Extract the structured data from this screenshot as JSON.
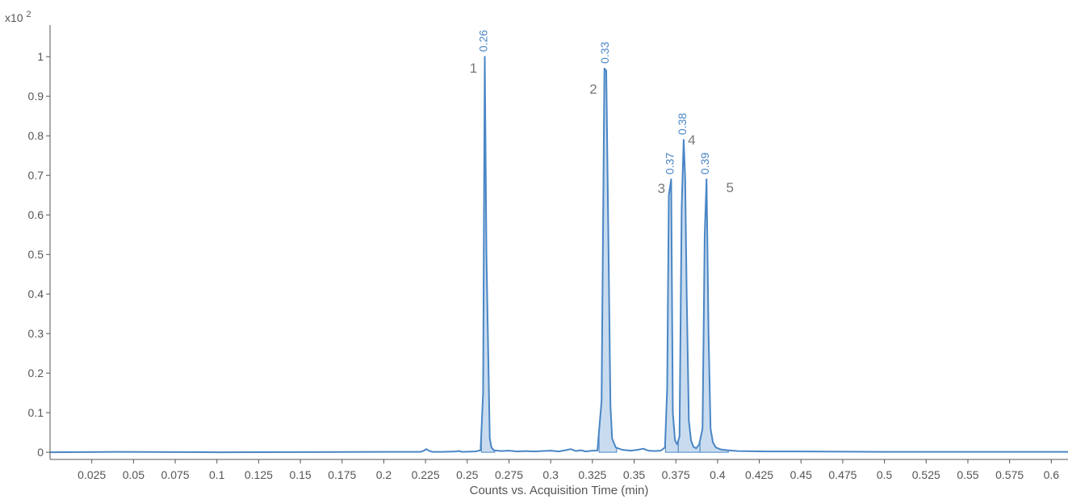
{
  "chart_data": {
    "type": "line",
    "title": "",
    "xlabel": "Counts vs. Acquisition Time (min)",
    "ylabel": "",
    "y_scale_label": "x10",
    "y_scale_exponent": "2",
    "xlim": [
      0,
      0.61
    ],
    "ylim": [
      -0.01,
      1.08
    ],
    "x_ticks": [
      "0.025",
      "0.05",
      "0.075",
      "0.1",
      "0.125",
      "0.15",
      "0.175",
      "0.2",
      "0.225",
      "0.25",
      "0.275",
      "0.3",
      "0.325",
      "0.35",
      "0.375",
      "0.4",
      "0.425",
      "0.45",
      "0.475",
      "0.5",
      "0.525",
      "0.55",
      "0.575",
      "0.6"
    ],
    "y_ticks": [
      "0",
      "0.1",
      "0.2",
      "0.3",
      "0.4",
      "0.5",
      "0.6",
      "0.7",
      "0.8",
      "0.9",
      "1"
    ],
    "grid": false,
    "legend": "none",
    "colors": {
      "line": "#4a86c5",
      "fill": "#c9dcef",
      "axis": "#555555",
      "peak_id": "#777777"
    },
    "series": [
      {
        "x": [
          0.0,
          0.04,
          0.1,
          0.2,
          0.222,
          0.224,
          0.2255,
          0.227,
          0.229,
          0.235,
          0.243,
          0.245,
          0.247,
          0.255,
          0.258,
          0.2595,
          0.2605,
          0.2615,
          0.2635,
          0.2645,
          0.266,
          0.27,
          0.275,
          0.28,
          0.285,
          0.29,
          0.295,
          0.3,
          0.305,
          0.31,
          0.312,
          0.315,
          0.318,
          0.321,
          0.325,
          0.328,
          0.3305,
          0.3322,
          0.3333,
          0.3347,
          0.3358,
          0.3368,
          0.339,
          0.343,
          0.348,
          0.352,
          0.3555,
          0.3585,
          0.362,
          0.366,
          0.3685,
          0.3698,
          0.3708,
          0.3722,
          0.3732,
          0.3745,
          0.3758,
          0.3772,
          0.3785,
          0.3797,
          0.3806,
          0.3815,
          0.3828,
          0.3841,
          0.3855,
          0.3872,
          0.389,
          0.391,
          0.3923,
          0.3934,
          0.3946,
          0.3958,
          0.3972,
          0.399,
          0.402,
          0.406,
          0.412,
          0.43,
          0.45,
          0.5,
          0.6,
          0.61
        ],
        "y": [
          0.0,
          0.001,
          0.0,
          0.001,
          0.001,
          0.004,
          0.008,
          0.004,
          0.001,
          0.001,
          0.002,
          0.003,
          0.001,
          0.002,
          0.005,
          0.15,
          1.0,
          0.5,
          0.035,
          0.012,
          0.005,
          0.003,
          0.004,
          0.002,
          0.003,
          0.002,
          0.003,
          0.004,
          0.002,
          0.006,
          0.008,
          0.003,
          0.005,
          0.002,
          0.004,
          0.004,
          0.13,
          0.97,
          0.965,
          0.5,
          0.12,
          0.035,
          0.012,
          0.006,
          0.004,
          0.006,
          0.009,
          0.004,
          0.003,
          0.004,
          0.012,
          0.16,
          0.65,
          0.69,
          0.1,
          0.03,
          0.02,
          0.04,
          0.62,
          0.79,
          0.69,
          0.4,
          0.08,
          0.03,
          0.014,
          0.01,
          0.02,
          0.06,
          0.55,
          0.69,
          0.3,
          0.06,
          0.025,
          0.012,
          0.007,
          0.005,
          0.003,
          0.002,
          0.002,
          0.001,
          0.001,
          0.001
        ]
      }
    ],
    "peaks": [
      {
        "id": "1",
        "time": "0.26",
        "x": 0.2605,
        "y": 1.0
      },
      {
        "id": "2",
        "time": "0.33",
        "x": 0.3333,
        "y": 0.97
      },
      {
        "id": "3",
        "time": "0.37",
        "x": 0.3722,
        "y": 0.69
      },
      {
        "id": "4",
        "time": "0.38",
        "x": 0.3797,
        "y": 0.79
      },
      {
        "id": "5",
        "time": "0.39",
        "x": 0.3934,
        "y": 0.69
      }
    ],
    "fill_ranges": [
      [
        0.2585,
        0.2665
      ],
      [
        0.329,
        0.3395
      ],
      [
        0.3688,
        0.3765
      ],
      [
        0.3765,
        0.3895
      ],
      [
        0.3895,
        0.4065
      ]
    ]
  }
}
